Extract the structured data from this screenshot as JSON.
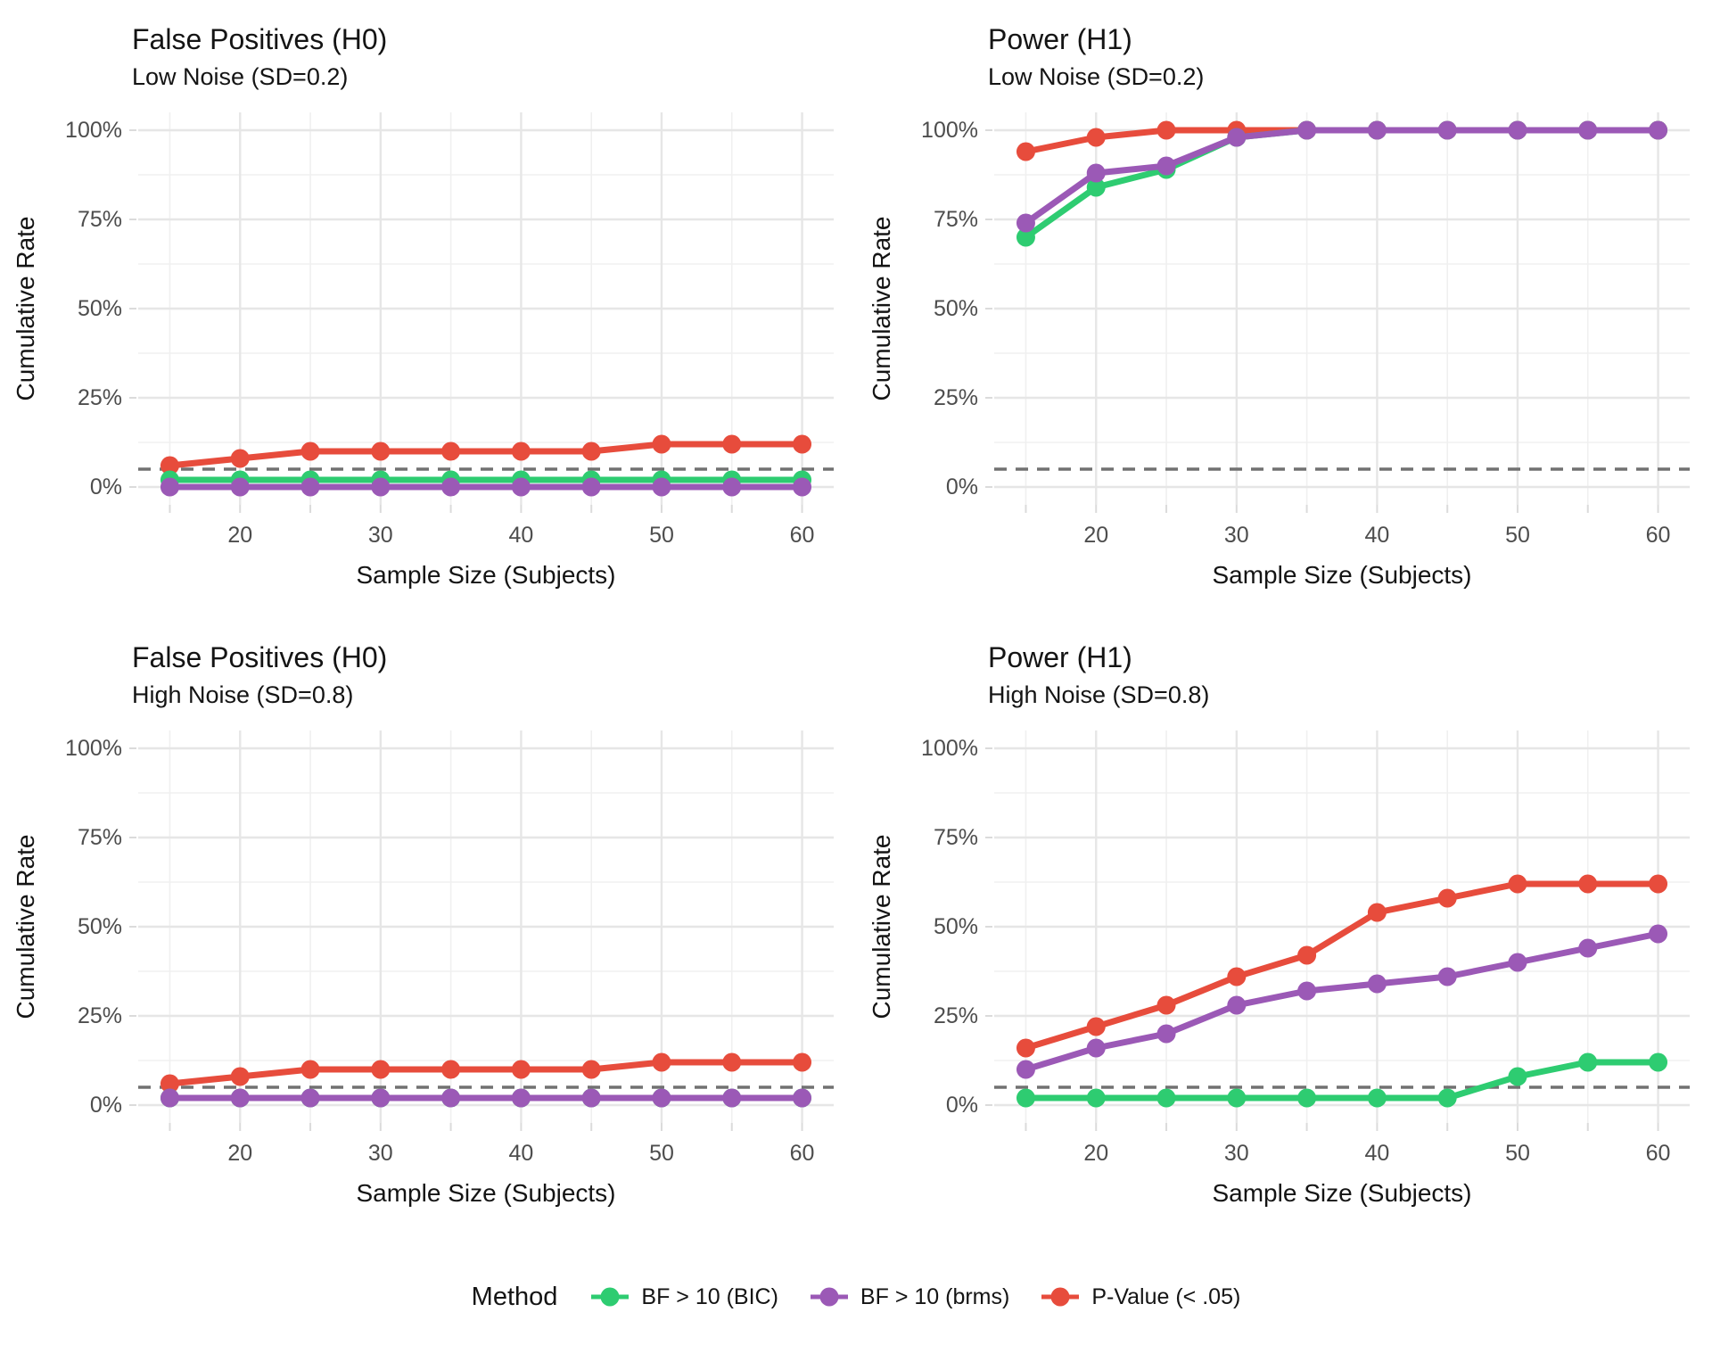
{
  "figure": {
    "background": "#FFFFFF",
    "grid_color_major": "#E6E6E6",
    "grid_color_minor": "#F0F0F0",
    "tick_label_color": "#4D4D4D"
  },
  "axes": {
    "x_label": "Sample Size (Subjects)",
    "y_label": "Cumulative Rate",
    "x_ticks": [
      20,
      30,
      40,
      50,
      60
    ],
    "x_minor_ticks": [
      15,
      25,
      35,
      45,
      55
    ],
    "y_ticks": [
      {
        "value": 0,
        "label": "0%"
      },
      {
        "value": 25,
        "label": "25%"
      },
      {
        "value": 50,
        "label": "50%"
      },
      {
        "value": 75,
        "label": "75%"
      },
      {
        "value": 100,
        "label": "100%"
      }
    ],
    "y_minor_ticks": [
      12.5,
      37.5,
      62.5,
      87.5
    ],
    "xlim": [
      15,
      60
    ],
    "ylim": [
      0,
      100
    ],
    "grid": true
  },
  "threshold_line": {
    "y": 5,
    "style": "dashed",
    "color": "#717171"
  },
  "legend": {
    "title": "Method",
    "position": "bottom",
    "items": [
      {
        "label": "BF > 10 (BIC)",
        "color": "#2ECC71"
      },
      {
        "label": "BF > 10 (brms)",
        "color": "#9B59B6"
      },
      {
        "label": "P-Value (< .05)",
        "color": "#E74C3C"
      }
    ]
  },
  "chart_data": [
    {
      "type": "line",
      "title": "False Positives (H0)",
      "subtitle": "Low Noise (SD=0.2)",
      "xlabel": "Sample Size (Subjects)",
      "ylabel": "Cumulative Rate",
      "x": [
        15,
        20,
        25,
        30,
        35,
        40,
        45,
        50,
        55,
        60
      ],
      "series": [
        {
          "name": "BF > 10 (BIC)",
          "color": "#2ECC71",
          "values": [
            2,
            2,
            2,
            2,
            2,
            2,
            2,
            2,
            2,
            2
          ]
        },
        {
          "name": "BF > 10 (brms)",
          "color": "#9B59B6",
          "values": [
            0,
            0,
            0,
            0,
            0,
            0,
            0,
            0,
            0,
            0
          ]
        },
        {
          "name": "P-Value (< .05)",
          "color": "#E74C3C",
          "values": [
            6,
            8,
            10,
            10,
            10,
            10,
            10,
            12,
            12,
            12
          ]
        }
      ]
    },
    {
      "type": "line",
      "title": "Power (H1)",
      "subtitle": "Low Noise (SD=0.2)",
      "xlabel": "Sample Size (Subjects)",
      "ylabel": "Cumulative Rate",
      "x": [
        15,
        20,
        25,
        30,
        35,
        40,
        45,
        50,
        55,
        60
      ],
      "series": [
        {
          "name": "BF > 10 (BIC)",
          "color": "#2ECC71",
          "values": [
            70,
            84,
            89,
            98,
            100,
            100,
            100,
            100,
            100,
            100
          ]
        },
        {
          "name": "BF > 10 (brms)",
          "color": "#9B59B6",
          "values": [
            74,
            88,
            90,
            98,
            100,
            100,
            100,
            100,
            100,
            100
          ]
        },
        {
          "name": "P-Value (< .05)",
          "color": "#E74C3C",
          "values": [
            94,
            98,
            100,
            100,
            100,
            100,
            100,
            100,
            100,
            100
          ]
        }
      ]
    },
    {
      "type": "line",
      "title": "False Positives (H0)",
      "subtitle": "High Noise (SD=0.8)",
      "xlabel": "Sample Size (Subjects)",
      "ylabel": "Cumulative Rate",
      "x": [
        15,
        20,
        25,
        30,
        35,
        40,
        45,
        50,
        55,
        60
      ],
      "series": [
        {
          "name": "BF > 10 (BIC)",
          "color": "#2ECC71",
          "values": [
            2,
            2,
            2,
            2,
            2,
            2,
            2,
            2,
            2,
            2
          ]
        },
        {
          "name": "BF > 10 (brms)",
          "color": "#9B59B6",
          "values": [
            2,
            2,
            2,
            2,
            2,
            2,
            2,
            2,
            2,
            2
          ]
        },
        {
          "name": "P-Value (< .05)",
          "color": "#E74C3C",
          "values": [
            6,
            8,
            10,
            10,
            10,
            10,
            10,
            12,
            12,
            12
          ]
        }
      ]
    },
    {
      "type": "line",
      "title": "Power (H1)",
      "subtitle": "High Noise (SD=0.8)",
      "xlabel": "Sample Size (Subjects)",
      "ylabel": "Cumulative Rate",
      "x": [
        15,
        20,
        25,
        30,
        35,
        40,
        45,
        50,
        55,
        60
      ],
      "series": [
        {
          "name": "BF > 10 (BIC)",
          "color": "#2ECC71",
          "values": [
            2,
            2,
            2,
            2,
            2,
            2,
            2,
            8,
            12,
            12
          ]
        },
        {
          "name": "BF > 10 (brms)",
          "color": "#9B59B6",
          "values": [
            10,
            16,
            20,
            28,
            32,
            34,
            36,
            40,
            44,
            48
          ]
        },
        {
          "name": "P-Value (< .05)",
          "color": "#E74C3C",
          "values": [
            16,
            22,
            28,
            36,
            42,
            54,
            58,
            62,
            62,
            62
          ]
        }
      ]
    }
  ]
}
